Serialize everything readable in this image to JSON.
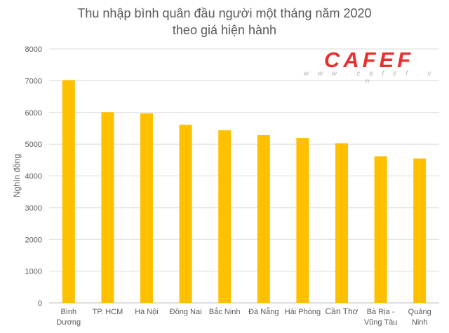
{
  "chart_data": {
    "type": "bar",
    "title_lines": [
      "Thu nhập bình quân đầu người một tháng năm 2020",
      "theo giá hiện hành"
    ],
    "ylabel": "Nghìn đồng",
    "xlabel": "",
    "categories": [
      [
        "Bình",
        "Dương"
      ],
      [
        "TP. HCM"
      ],
      [
        "Hà Nội"
      ],
      [
        "Đồng Nai"
      ],
      [
        "Bắc Ninh"
      ],
      [
        "Đà Nẵng"
      ],
      [
        "Hải Phòng"
      ],
      [
        "Cần Thơ"
      ],
      [
        "Bà Rịa -",
        "Vũng Tàu"
      ],
      [
        "Quảng",
        "Ninh"
      ]
    ],
    "values": [
      7020,
      6010,
      5970,
      5610,
      5440,
      5290,
      5200,
      5030,
      4620,
      4550
    ],
    "ylim": [
      0,
      8000
    ],
    "yticks": [
      0,
      1000,
      2000,
      3000,
      4000,
      5000,
      6000,
      7000,
      8000
    ],
    "grid": true,
    "legend": "none",
    "bar_color": "#ffc000"
  },
  "watermark": {
    "brand": "CAFEF",
    "url": "w w w . c a f e f . v n"
  },
  "colors": {
    "gridline": "#d9d9d9",
    "axis": "#bfbfbf",
    "text": "#595959",
    "brand_red": "#e8312f"
  }
}
